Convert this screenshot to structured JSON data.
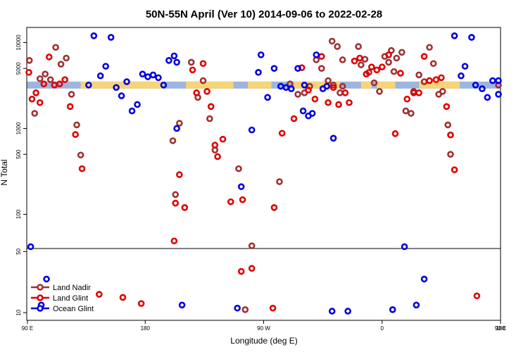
{
  "chart_data": {
    "type": "scatter",
    "title": "50N-55N April (Ver 10)   2014-09-06 to 2022-02-28",
    "xlabel": "Longitude (deg E)",
    "ylabel": "N Total",
    "xlim": [
      0,
      360
    ],
    "x_tick_values": [
      0,
      90,
      180,
      270,
      360
    ],
    "x_tick_labels": [
      "90 E",
      "180",
      "90 W",
      "0",
      "90 E",
      "180"
    ],
    "upper_panel": {
      "scale": "log",
      "ylim": [
        40,
        15000
      ],
      "y_ticks": [
        100,
        500,
        1000,
        5000,
        10000
      ]
    },
    "lower_panel": {
      "scale": "linear",
      "ylim": [
        5,
        52
      ],
      "y_ticks": [
        10,
        50
      ]
    },
    "band": {
      "y": 3200,
      "colors": [
        "#f5d47a",
        "#9db6dd"
      ]
    },
    "legend": {
      "position": "bottom-left"
    },
    "series": [
      {
        "name": "Land Nadir",
        "color": "#a03030",
        "points": [
          [
            2,
            6200
          ],
          [
            6,
            1500
          ],
          [
            10,
            3800
          ],
          [
            14,
            4300
          ],
          [
            18,
            3700
          ],
          [
            22,
            8800
          ],
          [
            26,
            5600
          ],
          [
            30,
            6600
          ],
          [
            34,
            2500
          ],
          [
            38,
            1100
          ],
          [
            41,
            490
          ],
          [
            125,
            5900
          ],
          [
            130,
            2300
          ],
          [
            134,
            3600
          ],
          [
            139,
            1300
          ],
          [
            143,
            560
          ],
          [
            116,
            1150
          ],
          [
            111,
            720
          ],
          [
            113,
            170
          ],
          [
            161,
            340
          ],
          [
            166,
            12
          ],
          [
            171,
            43
          ],
          [
            192,
            240
          ],
          [
            200,
            3300
          ],
          [
            206,
            2500
          ],
          [
            211,
            2600
          ],
          [
            215,
            3100
          ],
          [
            220,
            6300
          ],
          [
            224,
            5000
          ],
          [
            229,
            3600
          ],
          [
            233,
            3200
          ],
          [
            238,
            2600
          ],
          [
            240,
            3100
          ],
          [
            232,
            10400
          ],
          [
            236,
            9000
          ],
          [
            240,
            6300
          ],
          [
            252,
            9000
          ],
          [
            254,
            5500
          ],
          [
            257,
            6400
          ],
          [
            260,
            4500
          ],
          [
            264,
            3400
          ],
          [
            268,
            2700
          ],
          [
            272,
            6900
          ],
          [
            275,
            5900
          ],
          [
            279,
            4600
          ],
          [
            277,
            8100
          ],
          [
            281,
            6600
          ],
          [
            285,
            7700
          ],
          [
            288,
            1600
          ],
          [
            292,
            1500
          ],
          [
            294,
            2700
          ],
          [
            298,
            4200
          ],
          [
            302,
            3500
          ],
          [
            306,
            8800
          ],
          [
            309,
            5700
          ],
          [
            313,
            2500
          ],
          [
            316,
            2700
          ],
          [
            320,
            1100
          ],
          [
            322,
            500
          ],
          [
            362,
            3200
          ]
        ]
      },
      {
        "name": "Land Glint",
        "color": "#e00000",
        "points": [
          [
            1,
            4500
          ],
          [
            4,
            2200
          ],
          [
            7,
            2600
          ],
          [
            10,
            2000
          ],
          [
            13,
            3300
          ],
          [
            17,
            6800
          ],
          [
            21,
            3200
          ],
          [
            25,
            3300
          ],
          [
            29,
            3700
          ],
          [
            33,
            1800
          ],
          [
            37,
            850
          ],
          [
            42,
            340
          ],
          [
            55,
            22
          ],
          [
            73,
            20
          ],
          [
            87,
            16
          ],
          [
            112,
            49
          ],
          [
            113,
            135
          ],
          [
            116,
            290
          ],
          [
            120,
            120
          ],
          [
            126,
            4800
          ],
          [
            129,
            2600
          ],
          [
            134,
            5700
          ],
          [
            137,
            2700
          ],
          [
            140,
            1800
          ],
          [
            143,
            640
          ],
          [
            145,
            470
          ],
          [
            149,
            750
          ],
          [
            155,
            140
          ],
          [
            163,
            37
          ],
          [
            164,
            148
          ],
          [
            171,
            39
          ],
          [
            187,
            13
          ],
          [
            188,
            120
          ],
          [
            194,
            880
          ],
          [
            203,
            1300
          ],
          [
            209,
            5100
          ],
          [
            214,
            2800
          ],
          [
            219,
            2200
          ],
          [
            224,
            6900
          ],
          [
            229,
            2000
          ],
          [
            233,
            3000
          ],
          [
            237,
            1900
          ],
          [
            242,
            2600
          ],
          [
            245,
            2000
          ],
          [
            249,
            6100
          ],
          [
            253,
            6600
          ],
          [
            258,
            4300
          ],
          [
            262,
            5200
          ],
          [
            266,
            4800
          ],
          [
            270,
            5200
          ],
          [
            275,
            7200
          ],
          [
            280,
            870
          ],
          [
            284,
            4400
          ],
          [
            289,
            2200
          ],
          [
            294,
            2600
          ],
          [
            298,
            2600
          ],
          [
            302,
            6900
          ],
          [
            306,
            3600
          ],
          [
            311,
            3700
          ],
          [
            315,
            3900
          ],
          [
            319,
            1800
          ],
          [
            322,
            840
          ],
          [
            325,
            330
          ],
          [
            342,
            21
          ]
        ]
      },
      {
        "name": "Ocean Glint",
        "color": "#0000dd",
        "points": [
          [
            3,
            42
          ],
          [
            15,
            32
          ],
          [
            11,
            15
          ],
          [
            47,
            3200
          ],
          [
            51,
            12000
          ],
          [
            56,
            4100
          ],
          [
            60,
            5300
          ],
          [
            64,
            11500
          ],
          [
            68,
            3000
          ],
          [
            72,
            2400
          ],
          [
            76,
            3500
          ],
          [
            80,
            1600
          ],
          [
            84,
            1900
          ],
          [
            88,
            4300
          ],
          [
            92,
            4000
          ],
          [
            96,
            4200
          ],
          [
            100,
            3900
          ],
          [
            104,
            3200
          ],
          [
            108,
            6200
          ],
          [
            112,
            7000
          ],
          [
            114,
            5900
          ],
          [
            114,
            1000
          ],
          [
            118,
            15
          ],
          [
            160,
            13
          ],
          [
            163,
            210
          ],
          [
            171,
            960
          ],
          [
            176,
            4500
          ],
          [
            178,
            7200
          ],
          [
            183,
            2300
          ],
          [
            188,
            5000
          ],
          [
            193,
            3100
          ],
          [
            197,
            3000
          ],
          [
            201,
            2900
          ],
          [
            206,
            5000
          ],
          [
            211,
            3200
          ],
          [
            210,
            1600
          ],
          [
            214,
            1400
          ],
          [
            217,
            1500
          ],
          [
            220,
            7200
          ],
          [
            225,
            2900
          ],
          [
            228,
            3100
          ],
          [
            232,
            11
          ],
          [
            233,
            770
          ],
          [
            244,
            11
          ],
          [
            278,
            12
          ],
          [
            287,
            42
          ],
          [
            296,
            15
          ],
          [
            302,
            32
          ],
          [
            325,
            12000
          ],
          [
            330,
            4100
          ],
          [
            333,
            5300
          ],
          [
            338,
            11500
          ],
          [
            341,
            3200
          ],
          [
            346,
            2900
          ],
          [
            350,
            2300
          ],
          [
            354,
            3600
          ],
          [
            360,
            3600
          ],
          [
            362,
            2500
          ]
        ]
      }
    ]
  }
}
